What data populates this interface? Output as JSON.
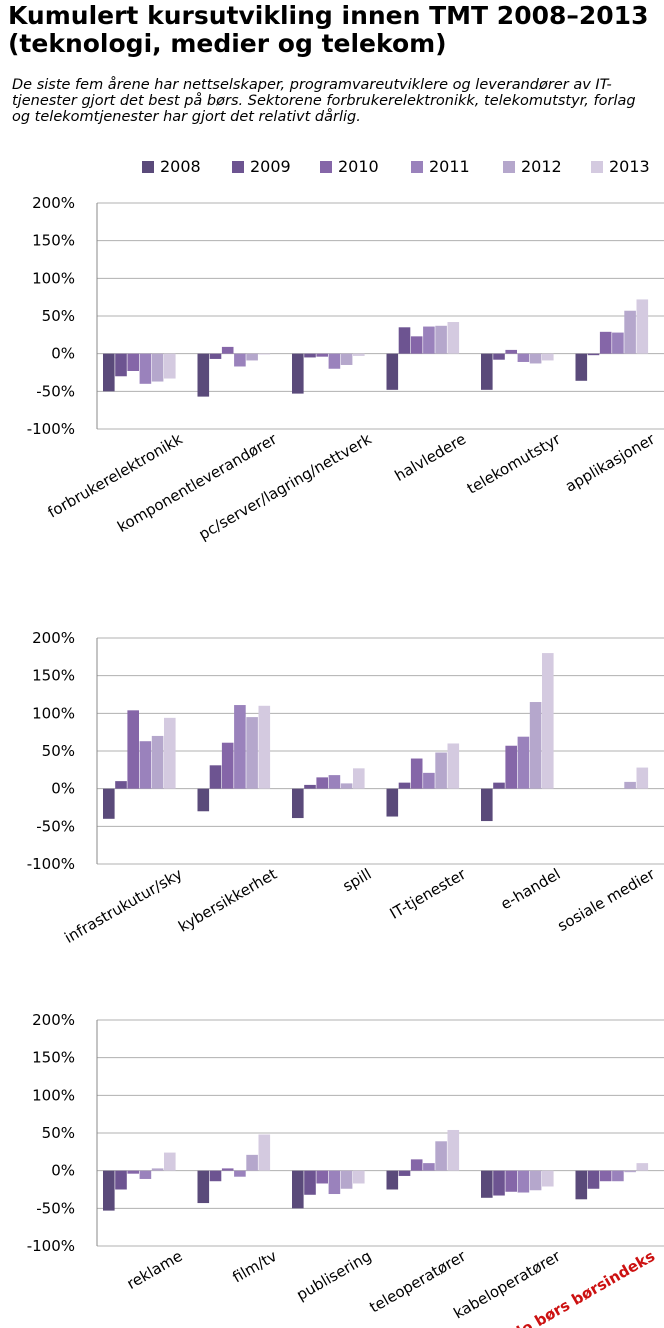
{
  "title": "Kumulert kursutvikling innen TMT 2008–2013 (teknologi, medier og telekom)",
  "subtitle": "De siste fem årene har nettselskaper, programvareutviklere og leverandører av IT-tjenester gjort det best på børs. Sektorene forbrukerelektronikk, telekomutstyr, forlag og telekomtjenester har gjort det relativt dårlig.",
  "colors": {
    "2008": "#5a4a7a",
    "2009": "#6d5491",
    "2010": "#8566a8",
    "2011": "#9a82bc",
    "2012": "#b5a7cc",
    "2013": "#d4cae0",
    "highlight_label": "#cc1111",
    "gridline": "#b0b0b0",
    "axis": "#888888"
  },
  "chart_data": [
    {
      "type": "bar",
      "series": [
        {
          "name": "2008",
          "values": [
            -50,
            -57,
            -53,
            -48,
            -48,
            -36
          ]
        },
        {
          "name": "2009",
          "values": [
            -30,
            -7,
            -5,
            35,
            -8,
            -2
          ]
        },
        {
          "name": "2010",
          "values": [
            -23,
            9,
            -4,
            23,
            5,
            29
          ]
        },
        {
          "name": "2011",
          "values": [
            -40,
            -17,
            -20,
            36,
            -11,
            28
          ]
        },
        {
          "name": "2012",
          "values": [
            -37,
            -9,
            -15,
            37,
            -13,
            57
          ]
        },
        {
          "name": "2013",
          "values": [
            -33,
            -1,
            -3,
            42,
            -9,
            72
          ]
        }
      ],
      "categories": [
        "forbrukerelektronikk",
        "komponentleverandører",
        "pc/server/lagring/nettverk",
        "halvledere",
        "telekomutstyr",
        "applikasjoner"
      ],
      "yticks": [
        "200%",
        "150%",
        "100%",
        "50%",
        "0%",
        "-50%",
        "-100%"
      ],
      "ylim": [
        -100,
        200
      ],
      "grid": true
    },
    {
      "type": "bar",
      "series": [
        {
          "name": "2008",
          "values": [
            -40,
            -30,
            -39,
            -37,
            -43,
            null
          ]
        },
        {
          "name": "2009",
          "values": [
            10,
            31,
            5,
            8,
            8,
            null
          ]
        },
        {
          "name": "2010",
          "values": [
            104,
            61,
            15,
            40,
            57,
            null
          ]
        },
        {
          "name": "2011",
          "values": [
            63,
            111,
            18,
            21,
            69,
            null
          ]
        },
        {
          "name": "2012",
          "values": [
            70,
            95,
            7,
            48,
            115,
            9
          ]
        },
        {
          "name": "2013",
          "values": [
            94,
            110,
            27,
            60,
            180,
            28
          ]
        }
      ],
      "categories": [
        "infrastrukutur/sky",
        "kybersikkerhet",
        "spill",
        "IT-tjenester",
        "e-handel",
        "sosiale medier"
      ],
      "yticks": [
        "200%",
        "150%",
        "100%",
        "50%",
        "0%",
        "-50%",
        "-100%"
      ],
      "ylim": [
        -100,
        200
      ],
      "grid": true
    },
    {
      "type": "bar",
      "series": [
        {
          "name": "2008",
          "values": [
            -53,
            -43,
            -50,
            -25,
            -36,
            -38
          ]
        },
        {
          "name": "2009",
          "values": [
            -25,
            -14,
            -32,
            -7,
            -33,
            -24
          ]
        },
        {
          "name": "2010",
          "values": [
            -4,
            3,
            -17,
            15,
            -28,
            -14
          ]
        },
        {
          "name": "2011",
          "values": [
            -11,
            -8,
            -31,
            10,
            -29,
            -14
          ]
        },
        {
          "name": "2012",
          "values": [
            3,
            21,
            -24,
            39,
            -26,
            -2
          ]
        },
        {
          "name": "2013",
          "values": [
            24,
            48,
            -17,
            54,
            -21,
            10
          ]
        }
      ],
      "categories": [
        "reklame",
        "film/tv",
        "publisering",
        "teleoperatører",
        "kabeloperatører",
        "Oslo børs børsindeks"
      ],
      "highlight_category": "Oslo børs børsindeks",
      "yticks": [
        "200%",
        "150%",
        "100%",
        "50%",
        "0%",
        "-50%",
        "-100%"
      ],
      "ylim": [
        -100,
        200
      ],
      "grid": true
    }
  ]
}
